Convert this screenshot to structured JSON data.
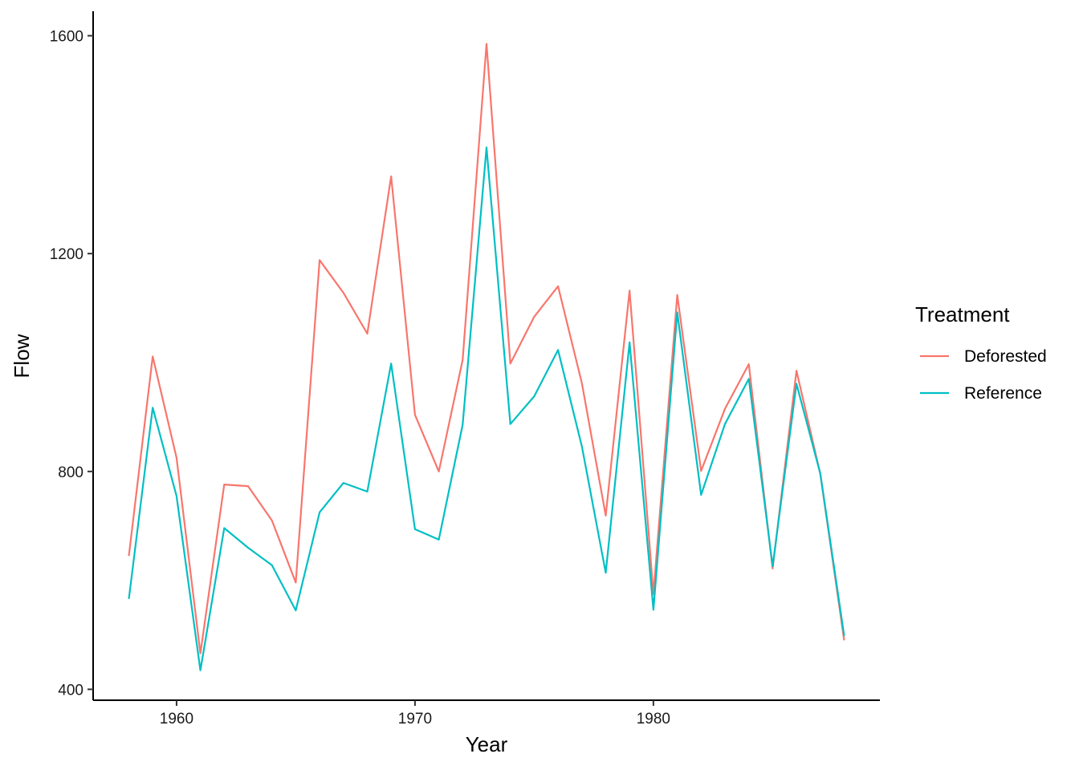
{
  "chart_data": {
    "type": "line",
    "xlabel": "Year",
    "ylabel": "Flow",
    "xlim": [
      1956.5,
      1989.5
    ],
    "ylim": [
      380,
      1645
    ],
    "x_ticks": [
      1960,
      1970,
      1980
    ],
    "y_ticks": [
      400,
      800,
      1200,
      1600
    ],
    "grid": false,
    "legend": {
      "title": "Treatment",
      "placement": "right"
    },
    "x": [
      1958,
      1959,
      1960,
      1961,
      1962,
      1963,
      1964,
      1965,
      1966,
      1967,
      1968,
      1969,
      1970,
      1971,
      1972,
      1973,
      1974,
      1975,
      1976,
      1977,
      1978,
      1979,
      1980,
      1981,
      1982,
      1983,
      1984,
      1985,
      1986,
      1987,
      1988
    ],
    "series": [
      {
        "name": "Deforested",
        "color": "#F8766D",
        "values": [
          645,
          1011,
          825,
          466,
          776,
          773,
          710,
          596,
          1188,
          1128,
          1053,
          1342,
          904,
          800,
          1005,
          1585,
          998,
          1084,
          1140,
          962,
          719,
          1132,
          575,
          1124,
          801,
          915,
          997,
          622,
          985,
          795,
          490
        ]
      },
      {
        "name": "Reference",
        "color": "#00BFC4",
        "values": [
          566,
          917,
          755,
          435,
          696,
          660,
          628,
          545,
          725,
          779,
          763,
          998,
          694,
          675,
          886,
          1395,
          887,
          938,
          1023,
          846,
          614,
          1037,
          546,
          1092,
          757,
          887,
          970,
          626,
          961,
          796,
          498
        ]
      }
    ]
  }
}
